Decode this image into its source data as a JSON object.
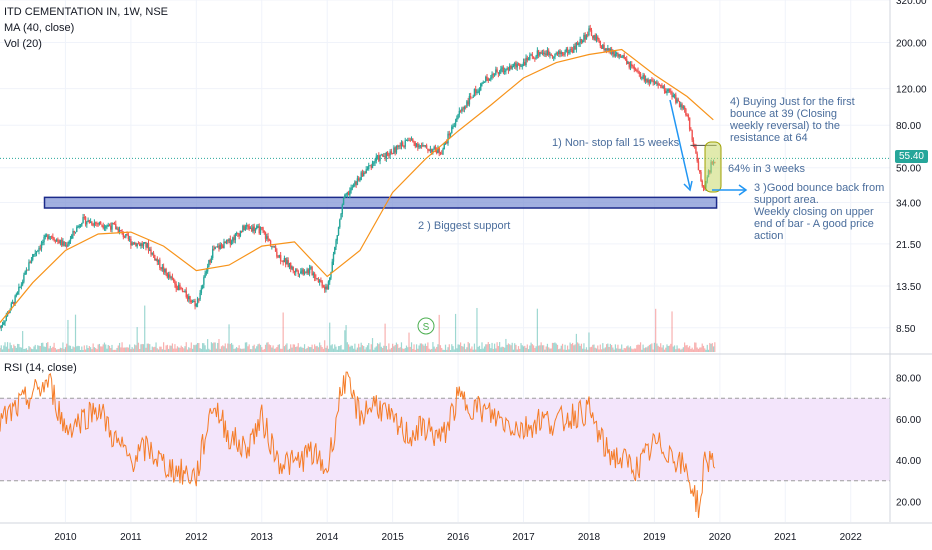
{
  "header": {
    "symbol_line": "ITD CEMENTATION IN, 1W, NSE",
    "ma_label": "MA (40, close)",
    "vol_label": "Vol (20)",
    "rsi_label": "RSI (14, close)"
  },
  "price_tag": "55.40",
  "volume_marker": "S",
  "annotations": {
    "a1": "1) Non- stop fall 15 weeks",
    "a2": "2 ) Biggest support",
    "a3": "3 )Good bounce back from support area.\nWeekly closing on upper end of bar - A good price action",
    "a4": "4) Buying Just for the first bounce at 39 (Closing weekly reversal) to the resistance at 64",
    "a5": "64% in 3 weeks"
  },
  "colors": {
    "up": "#26a69a",
    "down": "#ef5350",
    "ma": "#f7931a",
    "rsi": "#f57c27",
    "rsi_band": "#f3e5fb",
    "support_box": "#7b8fd3",
    "arrow": "#2196f3",
    "highlight": "#c9d96a"
  },
  "chart_data": [
    {
      "type": "candlestick",
      "title": "ITD CEMENTATION IN, 1W, NSE",
      "y_scale": "log",
      "ylim": [
        6.5,
        320
      ],
      "y_ticks": [
        "320.00",
        "200.00",
        "120.00",
        "80.00",
        "50.00",
        "34.00",
        "21.50",
        "13.50",
        "8.50"
      ],
      "x_ticks": [
        "2010",
        "2011",
        "2012",
        "2013",
        "2014",
        "2015",
        "2016",
        "2017",
        "2018",
        "2019",
        "2020",
        "2021",
        "2022"
      ],
      "series": [
        {
          "name": "Close",
          "x": [
            2009.0,
            2009.25,
            2009.5,
            2009.75,
            2010.0,
            2010.25,
            2010.5,
            2010.75,
            2011.0,
            2011.25,
            2011.5,
            2011.75,
            2012.0,
            2012.25,
            2012.5,
            2012.75,
            2013.0,
            2013.25,
            2013.5,
            2013.75,
            2014.0,
            2014.25,
            2014.5,
            2014.75,
            2015.0,
            2015.25,
            2015.5,
            2015.75,
            2016.0,
            2016.25,
            2016.5,
            2016.75,
            2017.0,
            2017.25,
            2017.5,
            2017.75,
            2018.0,
            2018.25,
            2018.5,
            2018.75,
            2019.0,
            2019.25,
            2019.5,
            2019.75,
            2019.9
          ],
          "values": [
            8.5,
            12,
            19,
            24,
            21,
            28,
            27,
            26,
            22,
            21,
            16,
            13,
            11,
            20,
            22,
            26,
            25,
            19,
            16,
            16,
            13,
            35,
            45,
            55,
            60,
            68,
            62,
            60,
            90,
            115,
            140,
            150,
            160,
            180,
            175,
            185,
            225,
            185,
            170,
            140,
            125,
            115,
            90,
            39,
            55.4
          ]
        },
        {
          "name": "MA (40, close)",
          "x": [
            2009.0,
            2009.5,
            2010.0,
            2010.5,
            2011.0,
            2011.5,
            2012.0,
            2012.5,
            2013.0,
            2013.5,
            2014.0,
            2014.5,
            2015.0,
            2015.5,
            2016.0,
            2016.5,
            2017.0,
            2017.5,
            2018.0,
            2018.5,
            2019.0,
            2019.5,
            2019.9
          ],
          "values": [
            9,
            14,
            20,
            24,
            24.5,
            21,
            16,
            17,
            21,
            22,
            15,
            20,
            38,
            55,
            75,
            100,
            135,
            160,
            175,
            185,
            140,
            110,
            85
          ]
        }
      ],
      "support_zone": [
        32,
        36
      ],
      "highlighted_level": 64,
      "current_price": 55.4
    },
    {
      "type": "line",
      "title": "RSI (14, close)",
      "ylim": [
        10,
        90
      ],
      "y_ticks": [
        "80.00",
        "60.00",
        "40.00",
        "20.00"
      ],
      "band": [
        30,
        70
      ],
      "series": [
        {
          "name": "RSI",
          "x": [
            2009.0,
            2009.25,
            2009.5,
            2009.75,
            2010.0,
            2010.25,
            2010.5,
            2010.75,
            2011.0,
            2011.25,
            2011.5,
            2011.75,
            2012.0,
            2012.25,
            2012.5,
            2012.75,
            2013.0,
            2013.25,
            2013.5,
            2013.75,
            2014.0,
            2014.25,
            2014.5,
            2014.75,
            2015.0,
            2015.25,
            2015.5,
            2015.75,
            2016.0,
            2016.25,
            2016.5,
            2016.75,
            2017.0,
            2017.25,
            2017.5,
            2017.75,
            2018.0,
            2018.25,
            2018.5,
            2018.75,
            2019.0,
            2019.25,
            2019.5,
            2019.7,
            2019.75,
            2019.9
          ],
          "values": [
            58,
            65,
            72,
            78,
            55,
            60,
            66,
            50,
            40,
            46,
            38,
            34,
            32,
            68,
            52,
            45,
            60,
            40,
            38,
            44,
            35,
            80,
            62,
            68,
            58,
            52,
            56,
            50,
            70,
            66,
            62,
            58,
            55,
            60,
            58,
            62,
            64,
            45,
            40,
            36,
            48,
            44,
            34,
            15,
            38,
            42
          ]
        }
      ]
    }
  ]
}
